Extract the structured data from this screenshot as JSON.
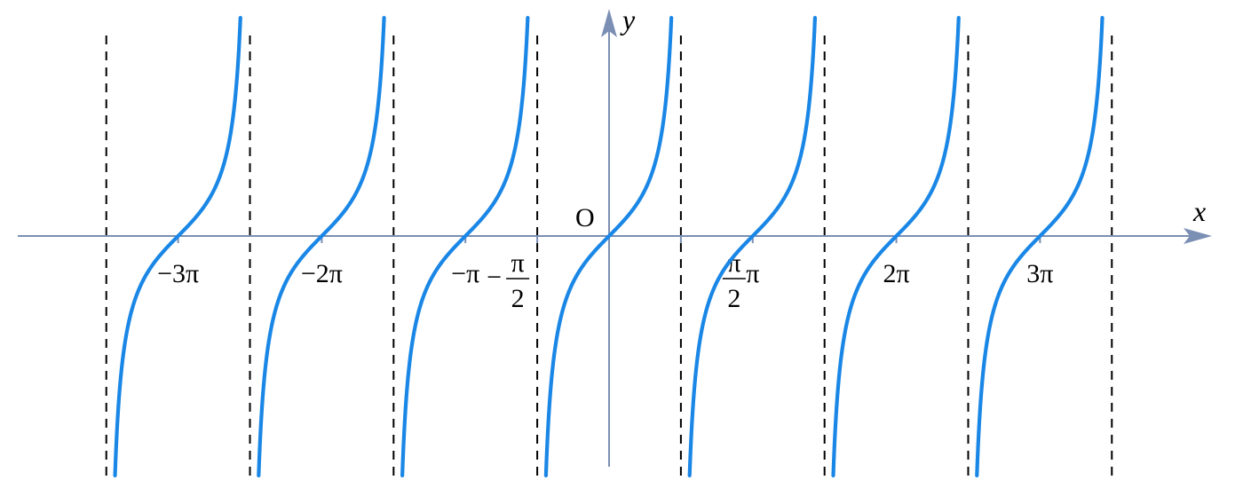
{
  "chart_data": {
    "type": "line",
    "function": "y = tan x",
    "series": [
      {
        "color": "#1a87e6"
      }
    ],
    "x_axis": {
      "label": "x",
      "ticks": [
        {
          "value": -9.42478,
          "text": "−3π"
        },
        {
          "value": -6.28319,
          "text": "−2π"
        },
        {
          "value": -3.14159,
          "text": "−π"
        },
        {
          "value": -1.5708,
          "text": "π/2",
          "numerator": "π",
          "denominator": "2",
          "sign": "−"
        },
        {
          "value": 1.5708,
          "text": "π/2",
          "numerator": "π",
          "denominator": "2",
          "sign": ""
        },
        {
          "value": 3.14159,
          "text": "π"
        },
        {
          "value": 6.28319,
          "text": "2π"
        },
        {
          "value": 9.42478,
          "text": "3π"
        }
      ],
      "range": [
        -11.6,
        11.4
      ]
    },
    "y_axis": {
      "label": "y",
      "range": [
        -4.9,
        4.2
      ]
    },
    "origin_label": "O",
    "asymptotes": [
      -10.9956,
      -7.85398,
      -4.71239,
      -1.5708,
      1.5708,
      4.71239,
      7.85398,
      10.9956
    ],
    "asymptote_style": "dashed",
    "branches_x_range": [
      -10.99,
      10.99
    ],
    "grid": false,
    "legend": "none"
  }
}
